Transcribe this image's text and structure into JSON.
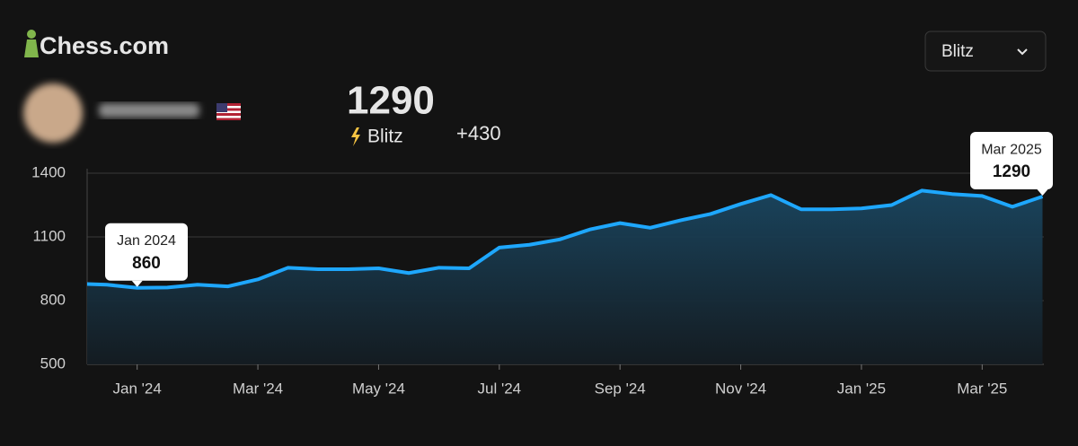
{
  "header": {
    "brand": "Chess.com",
    "mode_select": "Blitz",
    "rating": "1290",
    "mode": "Blitz",
    "change": "+430"
  },
  "chart_data": {
    "type": "line",
    "categories": [
      null,
      null,
      "Jan '24",
      null,
      null,
      null,
      "Mar '24",
      null,
      null,
      null,
      "May '24",
      null,
      null,
      null,
      "Jul '24",
      null,
      null,
      null,
      "Sep '24",
      null,
      null,
      null,
      "Nov '24",
      null,
      null,
      null,
      "Jan '25",
      null,
      null,
      null,
      "Mar '25",
      null,
      null
    ],
    "series": [
      {
        "name": "Blitz",
        "color": "#1ea7fd",
        "values": [
          880,
          875,
          860,
          862,
          875,
          867,
          900,
          955,
          948,
          948,
          952,
          930,
          955,
          952,
          1050,
          1063,
          1088,
          1135,
          1165,
          1143,
          1178,
          1208,
          1255,
          1297,
          1230,
          1230,
          1234,
          1250,
          1318,
          1302,
          1293,
          1242,
          1290
        ]
      }
    ],
    "ylim": [
      500,
      1400
    ],
    "yticks": [
      500,
      800,
      1100,
      1400
    ],
    "grid": true,
    "annotations": [
      {
        "label": "Jan 2024",
        "value": 860
      },
      {
        "label": "Mar 2025",
        "value": 1290
      }
    ]
  }
}
